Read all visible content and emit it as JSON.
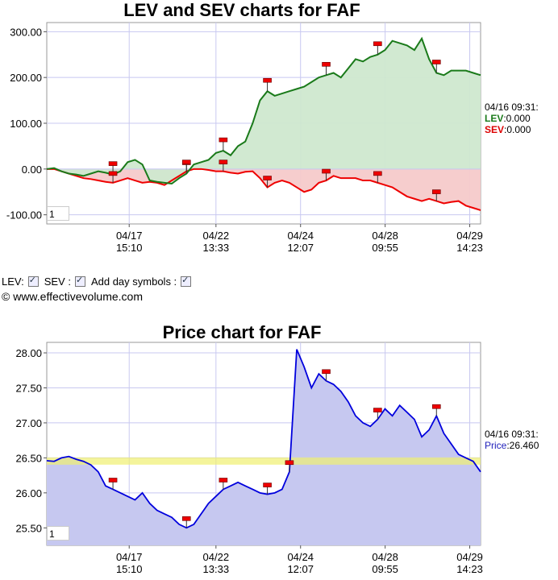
{
  "lev_chart": {
    "title": "LEV and SEV charts for FAF",
    "zoom_value": "1",
    "readout": {
      "time": "04/16 09:31:",
      "lev_label": "LEV",
      "lev_value": ":0.000",
      "sev_label": "SEV",
      "sev_value": ":0.000"
    },
    "colors": {
      "lev": "#1a7a1a",
      "lev_fill": "#cfe8cf",
      "sev": "#ee0000",
      "sev_fill": "#f6caca",
      "grid": "#c8c8f0"
    }
  },
  "controls": {
    "lev_label": "LEV:",
    "sev_label": "SEV :",
    "day_symbols_label": "Add day symbols :"
  },
  "copyright": "© www.effectivevolume.com",
  "price_chart": {
    "title": "Price chart for FAF",
    "zoom_value": "1",
    "readout": {
      "time": "04/16 09:31:",
      "price_label": "Price",
      "price_value": ":26.460"
    },
    "colors": {
      "price": "#0000dd",
      "price_fill": "#c6c8f0",
      "band": "#f0f070",
      "grid": "#c8c8f0"
    }
  },
  "chart_data": [
    {
      "type": "line",
      "title": "LEV and SEV charts for FAF",
      "ylim": [
        -120,
        320
      ],
      "yticks": [
        "300.00",
        "200.00",
        "100.00",
        "0.00",
        "-100.00"
      ],
      "x_ticks": [
        {
          "date": "04/17",
          "time": "15:10"
        },
        {
          "date": "04/22",
          "time": "13:33"
        },
        {
          "date": "04/24",
          "time": "12:07"
        },
        {
          "date": "04/28",
          "time": "09:55"
        },
        {
          "date": "04/29",
          "time": "14:23"
        }
      ],
      "series": [
        {
          "name": "LEV",
          "values": [
            0,
            2,
            -5,
            -10,
            -12,
            -15,
            -10,
            -5,
            -8,
            -12,
            -5,
            15,
            20,
            10,
            -25,
            -28,
            -30,
            -32,
            -20,
            -10,
            10,
            15,
            20,
            35,
            40,
            30,
            50,
            60,
            100,
            150,
            170,
            160,
            165,
            170,
            175,
            180,
            190,
            200,
            205,
            210,
            200,
            220,
            240,
            235,
            245,
            250,
            260,
            280,
            275,
            270,
            260,
            285,
            240,
            210,
            205,
            215,
            215,
            215,
            210,
            205
          ]
        },
        {
          "name": "SEV",
          "values": [
            0,
            0,
            -5,
            -10,
            -15,
            -20,
            -22,
            -25,
            -28,
            -30,
            -25,
            -20,
            -25,
            -30,
            -28,
            -30,
            -35,
            -25,
            -15,
            -5,
            0,
            0,
            -2,
            -5,
            -5,
            -8,
            -10,
            -6,
            -5,
            -20,
            -40,
            -30,
            -25,
            -30,
            -40,
            -50,
            -45,
            -30,
            -25,
            -15,
            -20,
            -20,
            -20,
            -25,
            -25,
            -30,
            -35,
            -40,
            -50,
            -60,
            -65,
            -70,
            -65,
            -70,
            -75,
            -72,
            -70,
            -80,
            -85,
            -90
          ]
        }
      ],
      "day_markers": [
        {
          "series": "LEV",
          "label": ""
        }
      ]
    },
    {
      "type": "area",
      "title": "Price chart for FAF",
      "ylim": [
        25.25,
        28.15
      ],
      "yticks": [
        "28.00",
        "27.50",
        "27.00",
        "26.50",
        "26.00",
        "25.50"
      ],
      "reference_level": 26.46,
      "x_ticks": [
        {
          "date": "04/17",
          "time": "15:10"
        },
        {
          "date": "04/22",
          "time": "13:33"
        },
        {
          "date": "04/24",
          "time": "12:07"
        },
        {
          "date": "04/28",
          "time": "09:55"
        },
        {
          "date": "04/29",
          "time": "14:23"
        }
      ],
      "series": [
        {
          "name": "Price",
          "values": [
            26.46,
            26.45,
            26.5,
            26.52,
            26.48,
            26.45,
            26.4,
            26.3,
            26.1,
            26.05,
            26.0,
            25.95,
            25.9,
            26.0,
            25.85,
            25.75,
            25.7,
            25.65,
            25.55,
            25.5,
            25.55,
            25.7,
            25.85,
            25.95,
            26.05,
            26.1,
            26.15,
            26.1,
            26.05,
            26.0,
            25.98,
            26.0,
            26.05,
            26.3,
            28.05,
            27.8,
            27.5,
            27.7,
            27.6,
            27.55,
            27.45,
            27.3,
            27.1,
            27.0,
            26.95,
            27.05,
            27.2,
            27.1,
            27.25,
            27.15,
            27.05,
            26.8,
            26.9,
            27.1,
            26.85,
            26.7,
            26.55,
            26.5,
            26.45,
            26.3
          ]
        }
      ]
    }
  ]
}
